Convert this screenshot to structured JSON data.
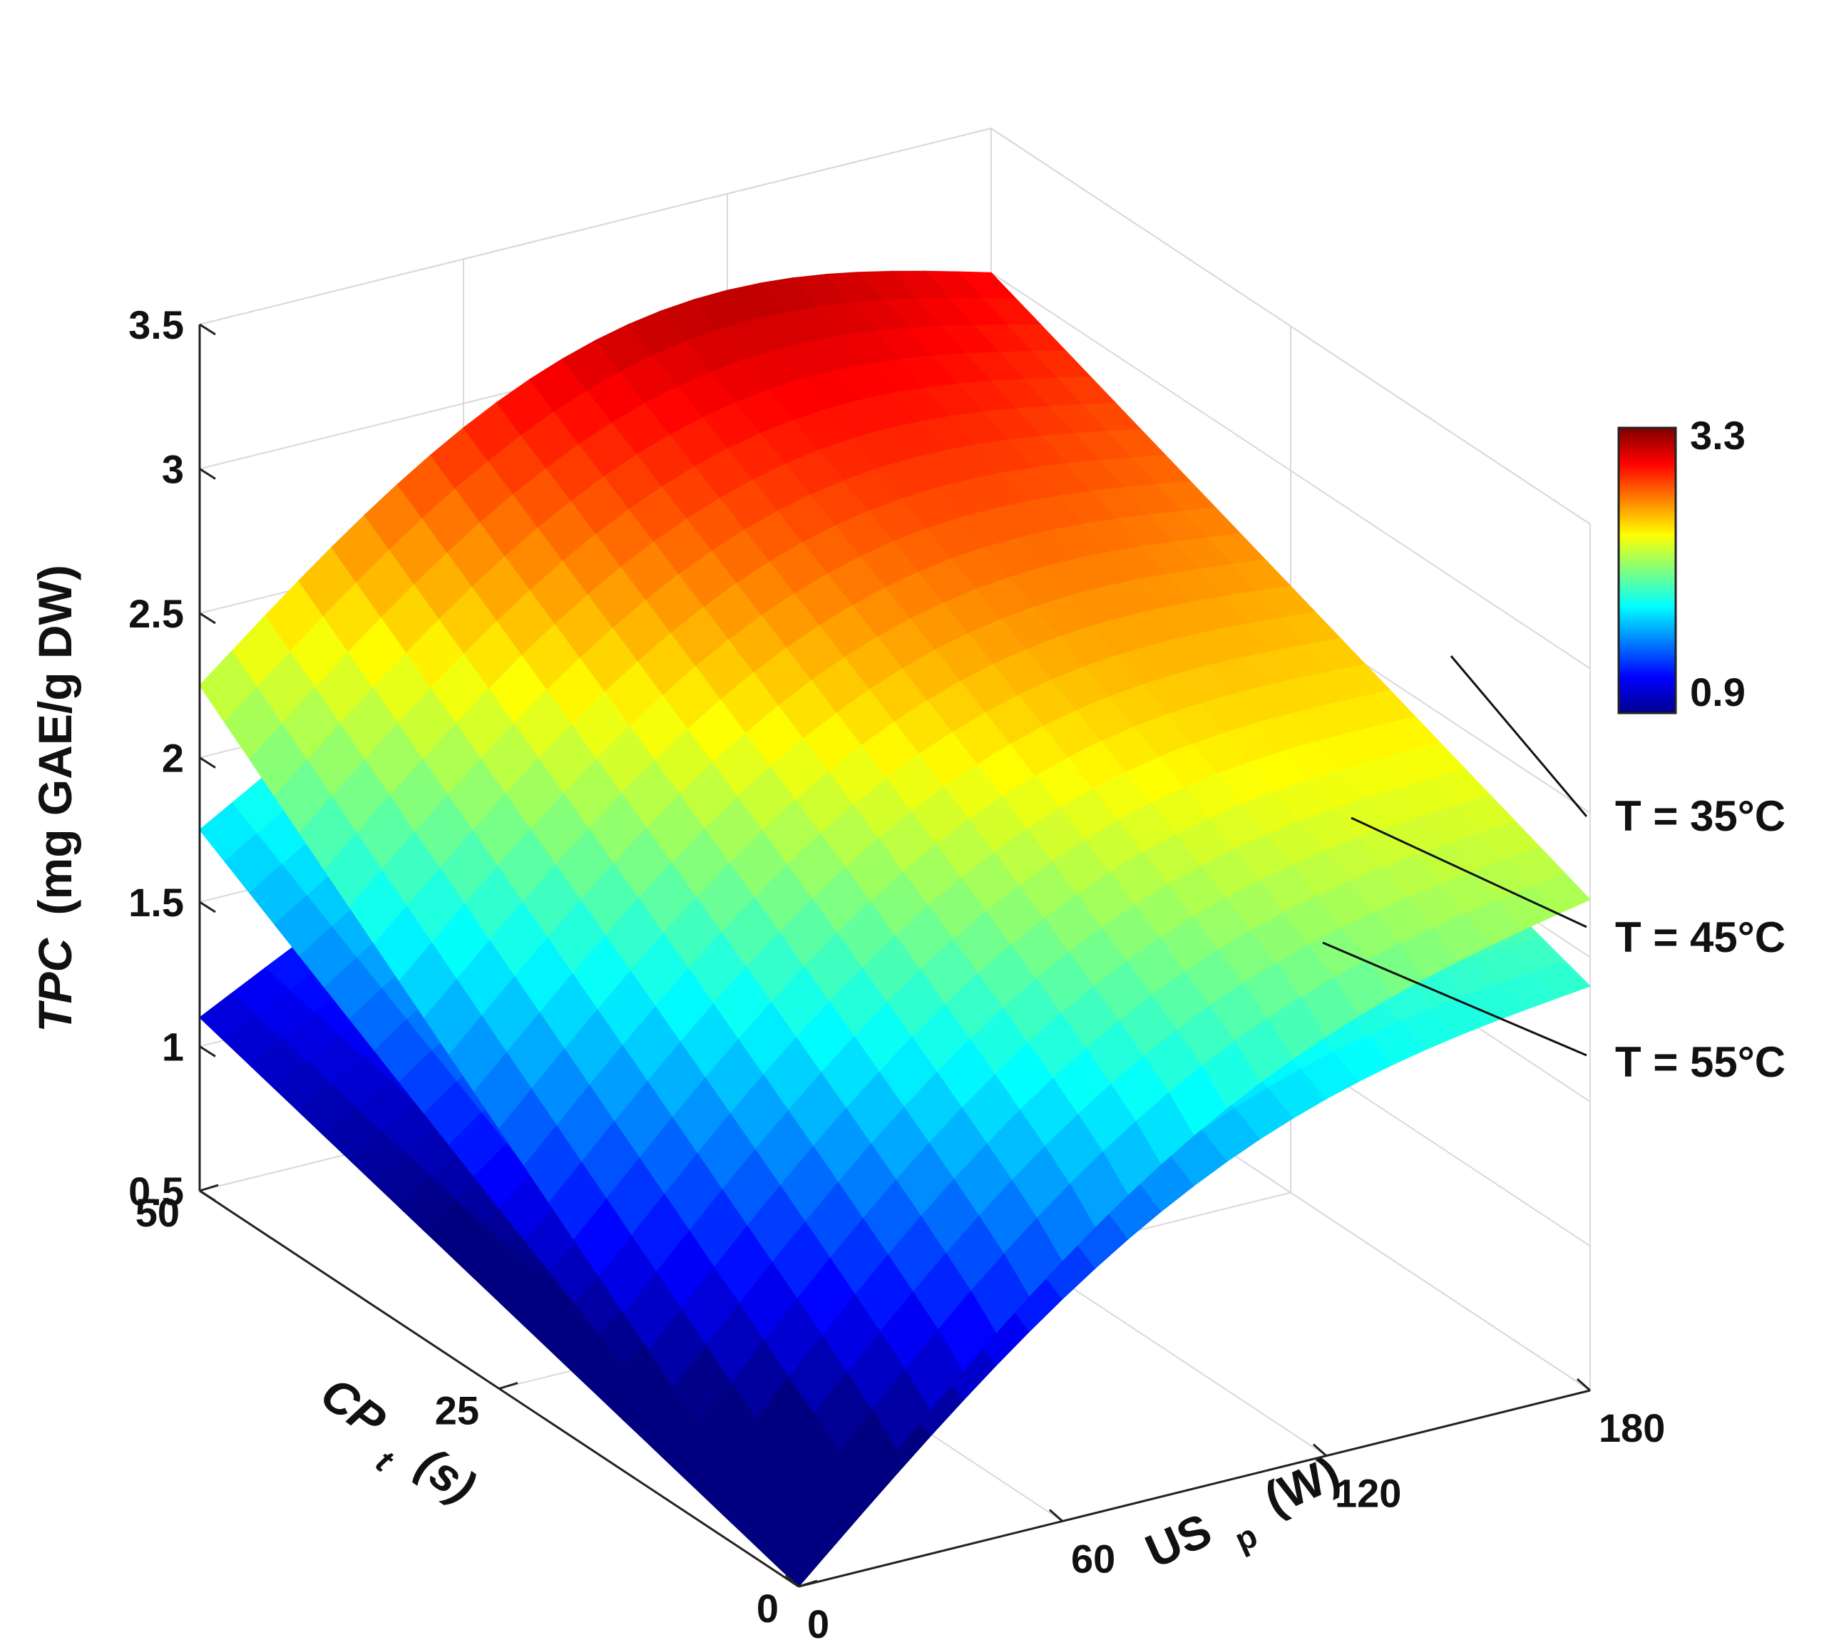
{
  "chart_data": {
    "type": "surface",
    "title": "",
    "zlabel": {
      "main": "TPC",
      "unit": "(mg GAE/g DW)"
    },
    "xlabel": {
      "main": "CP",
      "sub": "t",
      "unit": "(s)"
    },
    "ylabel": {
      "main": "US",
      "sub": "p",
      "unit": "(W)"
    },
    "x_name": "CP_t",
    "x_range": [
      0,
      50
    ],
    "x_ticks": [
      "0",
      "25",
      "50"
    ],
    "y_name": "US_p",
    "y_range": [
      0,
      180
    ],
    "y_ticks": [
      "0",
      "60",
      "120",
      "180"
    ],
    "z_range": [
      0.5,
      3.5
    ],
    "z_ticks": [
      "0.5",
      "1",
      "1.5",
      "2",
      "2.5",
      "3",
      "3.5"
    ],
    "grid": true,
    "colormap": "jet",
    "colorbar": {
      "min_label": "0.9",
      "max_label": "3.3",
      "min": 0.9,
      "max": 3.3,
      "placement": "right"
    },
    "series": [
      {
        "label": "T = 35°C",
        "corners": {
          "cp0_us0": 0.55,
          "cp0_us180": 2.2,
          "cp50_us0": 2.25,
          "cp50_us180": 3.0,
          "peak": 3.3
        }
      },
      {
        "label": "T = 45°C",
        "corners": {
          "cp0_us0": 0.5,
          "cp0_us180": 1.9,
          "cp50_us0": 1.75,
          "cp50_us180": 2.6,
          "peak": 2.75
        }
      },
      {
        "label": "T = 55°C",
        "corners": {
          "cp0_us0": 0.5,
          "cp0_us180": 1.9,
          "cp50_us0": 1.1,
          "cp50_us180": 2.0,
          "peak": 2.1
        }
      }
    ]
  }
}
